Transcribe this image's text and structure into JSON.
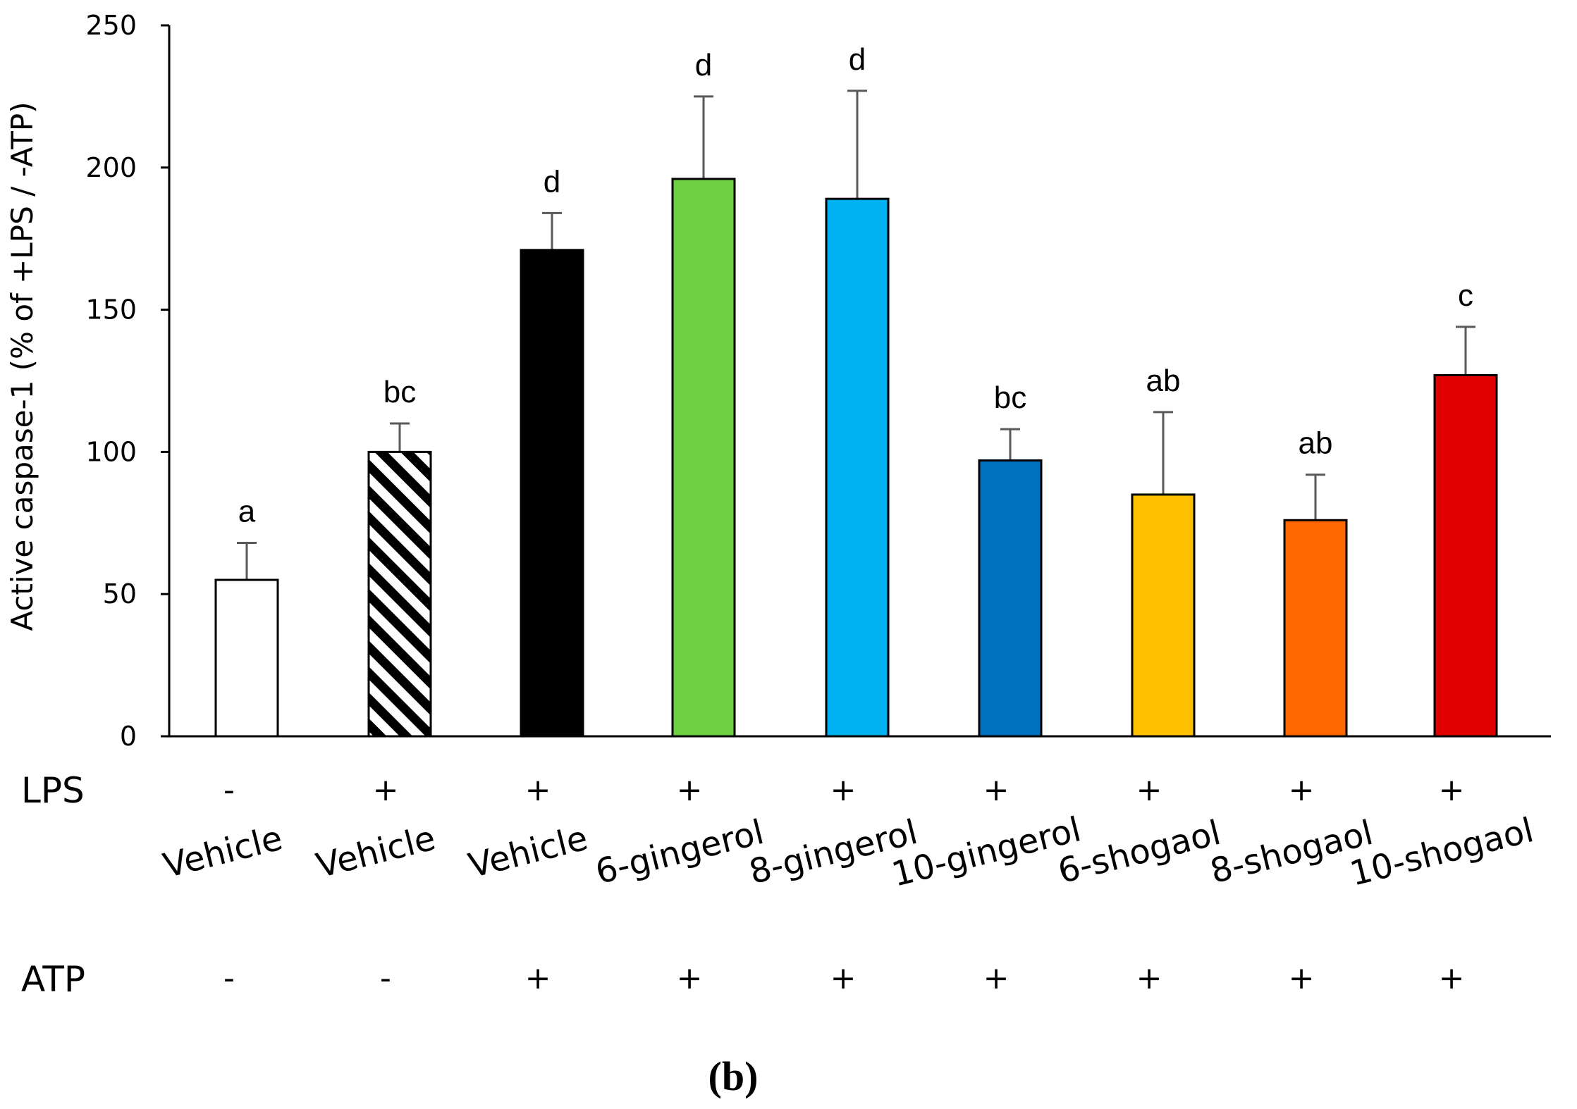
{
  "chart_data": {
    "type": "bar",
    "title": "",
    "xlabel": "",
    "ylabel": "Active caspase-1 (% of +LPS / -ATP)",
    "ylim": [
      0,
      250
    ],
    "yticks": [
      0,
      50,
      100,
      150,
      200,
      250
    ],
    "grid": false,
    "panel_label": "(b)",
    "row_labels": {
      "lps": "LPS",
      "atp": "ATP"
    },
    "categories": [
      "Vehicle",
      "Vehicle",
      "Vehicle",
      "6-gingerol",
      "8-gingerol",
      "10-gingerol",
      "6-shogaol",
      "8-shogaol",
      "10-shogaol"
    ],
    "values": [
      55,
      100,
      171,
      196,
      189,
      97,
      85,
      76,
      127
    ],
    "errors": [
      13,
      10,
      13,
      29,
      38,
      11,
      29,
      16,
      17
    ],
    "significance": [
      "a",
      "bc",
      "d",
      "d",
      "d",
      "bc",
      "ab",
      "ab",
      "c"
    ],
    "lps": [
      "-",
      "+",
      "+",
      "+",
      "+",
      "+",
      "+",
      "+",
      "+"
    ],
    "atp": [
      "-",
      "-",
      "+",
      "+",
      "+",
      "+",
      "+",
      "+",
      "+"
    ],
    "colors": [
      "#ffffff",
      "hatched",
      "#000000",
      "#6dd142",
      "#00b0f0",
      "#0070c0",
      "#ffc000",
      "#ff6600",
      "#e00000"
    ]
  }
}
